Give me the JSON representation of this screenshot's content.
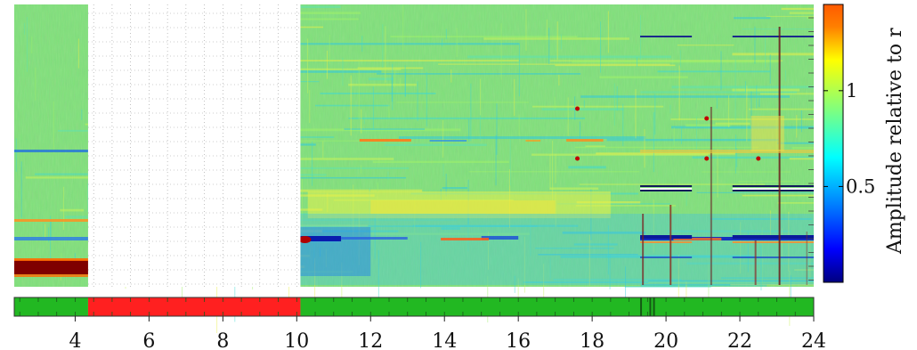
{
  "chart_data": {
    "type": "heatmap",
    "x_range": [
      2.35,
      24
    ],
    "x_ticks": [
      {
        "value": 4,
        "label": "4"
      },
      {
        "value": 6,
        "label": "6"
      },
      {
        "value": 8,
        "label": "8"
      },
      {
        "value": 10,
        "label": "10"
      },
      {
        "value": 12,
        "label": "12"
      },
      {
        "value": 14,
        "label": "14"
      },
      {
        "value": 16,
        "label": "16"
      },
      {
        "value": 18,
        "label": "18"
      },
      {
        "value": 20,
        "label": "20"
      },
      {
        "value": 22,
        "label": "22"
      },
      {
        "value": 24,
        "label": "24"
      }
    ],
    "grid": true,
    "missing_data_interval": [
      4.35,
      10.1
    ],
    "colorbar": {
      "label": "Amplitude relative to r",
      "range": [
        0,
        1.45
      ],
      "ticks": [
        {
          "value": 0.5,
          "label": "0.5"
        },
        {
          "value": 1,
          "label": "1"
        }
      ],
      "colormap": [
        "#00007f",
        "#0000ff",
        "#007fff",
        "#00ffff",
        "#7fff7f",
        "#ffff00",
        "#ff7f00",
        "#ff0000",
        "#7f0000"
      ]
    },
    "status_bar": {
      "segments": [
        {
          "start": 2.35,
          "end": 4.35,
          "status": "ok",
          "color": "#22b822"
        },
        {
          "start": 4.35,
          "end": 10.1,
          "status": "missing",
          "color": "#ff2020"
        },
        {
          "start": 10.1,
          "end": 24,
          "status": "ok",
          "color": "#22b822"
        }
      ]
    },
    "base_color": "#7ee07a"
  }
}
